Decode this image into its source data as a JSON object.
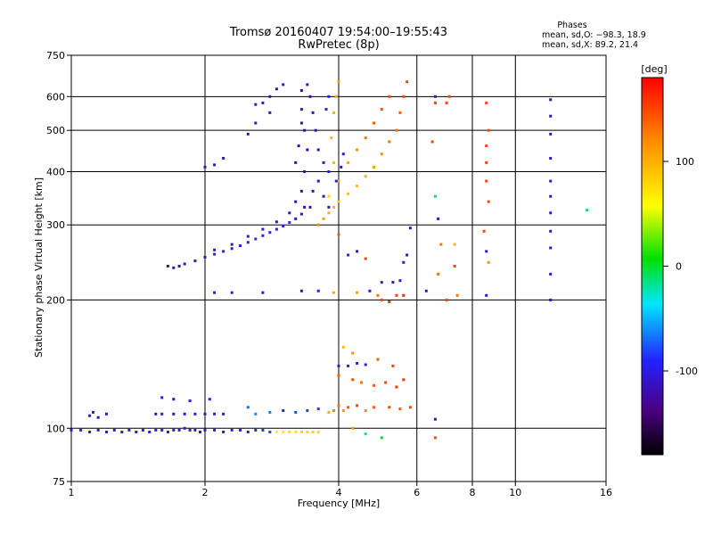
{
  "chart_data": {
    "type": "scatter",
    "title": "Tromsø 20160407 19:54:00–19:55:43",
    "subtitle": "RwPretec (8p)",
    "xlabel": "Frequency [MHz]",
    "ylabel": "Stationary phase Virtual Height [km]",
    "x_scale": "log",
    "y_scale": "log",
    "xlim": [
      1,
      16
    ],
    "ylim": [
      75,
      750
    ],
    "x_ticks": [
      1,
      2,
      4,
      6,
      8,
      10,
      16
    ],
    "x_tick_labels": [
      "1",
      "2",
      "4",
      "6",
      "8",
      "10",
      "16"
    ],
    "y_ticks": [
      75,
      100,
      200,
      300,
      400,
      500,
      600,
      750
    ],
    "y_tick_labels": [
      "75",
      "100",
      "200",
      "300",
      "400",
      "500",
      "600",
      "750"
    ],
    "grid": true,
    "stats": {
      "heading": "Phases",
      "line_o": "mean, sd,O: −98.3, 18.9",
      "line_x": "mean, sd,X:  89.2, 21.4"
    },
    "colorbar": {
      "label": "[deg]",
      "min": -180,
      "max": 180,
      "ticks": [
        100,
        0,
        -100
      ],
      "tick_labels": [
        "100",
        "0",
        "-100"
      ]
    },
    "color_note": "phase colormap: black/purple (-180) → blue → cyan → green → yellow → orange → red (+180)",
    "series": [
      {
        "points": [
          [
            1.0,
            99,
            -100
          ],
          [
            1.05,
            99,
            -102
          ],
          [
            1.1,
            98,
            -100
          ],
          [
            1.15,
            99,
            -98
          ],
          [
            1.2,
            98,
            -101
          ],
          [
            1.25,
            99,
            -103
          ],
          [
            1.3,
            98,
            -100
          ],
          [
            1.35,
            99,
            -99
          ],
          [
            1.4,
            98,
            -100
          ],
          [
            1.45,
            99,
            -102
          ],
          [
            1.5,
            98,
            -101
          ],
          [
            1.55,
            99,
            -100
          ],
          [
            1.6,
            99,
            -98
          ],
          [
            1.65,
            98,
            -100
          ],
          [
            1.7,
            99,
            -101
          ],
          [
            1.75,
            99,
            -100
          ],
          [
            1.8,
            100,
            -95
          ],
          [
            1.85,
            99,
            -100
          ],
          [
            1.9,
            99,
            -101
          ],
          [
            1.95,
            98,
            -100
          ],
          [
            2.0,
            99,
            -99
          ],
          [
            2.1,
            99,
            -100
          ],
          [
            2.2,
            98,
            -98
          ],
          [
            2.3,
            99,
            -100
          ],
          [
            2.4,
            99,
            -97
          ],
          [
            2.5,
            98,
            -95
          ],
          [
            2.6,
            99,
            -90
          ],
          [
            2.7,
            99,
            -85
          ],
          [
            2.8,
            98,
            -80
          ],
          [
            2.9,
            98,
            60
          ],
          [
            3.0,
            98,
            70
          ],
          [
            3.1,
            98,
            75
          ],
          [
            3.2,
            98,
            72
          ],
          [
            3.3,
            98,
            78
          ],
          [
            3.4,
            98,
            80
          ],
          [
            3.5,
            98,
            82
          ],
          [
            3.6,
            98,
            78
          ],
          [
            1.1,
            107,
            -110
          ],
          [
            1.12,
            109,
            -105
          ],
          [
            1.15,
            106,
            -112
          ],
          [
            1.2,
            108,
            -100
          ],
          [
            1.55,
            108,
            -110
          ],
          [
            1.6,
            108,
            -108
          ],
          [
            1.7,
            108,
            -110
          ],
          [
            1.8,
            108,
            -105
          ],
          [
            1.9,
            108,
            -108
          ],
          [
            2.0,
            108,
            -110
          ],
          [
            2.1,
            108,
            -106
          ],
          [
            2.2,
            108,
            -104
          ],
          [
            1.6,
            118,
            -105
          ],
          [
            1.7,
            117,
            -110
          ],
          [
            1.85,
            116,
            -100
          ],
          [
            2.05,
            117,
            -95
          ],
          [
            2.5,
            112,
            -70
          ],
          [
            2.6,
            108,
            -60
          ],
          [
            2.8,
            109,
            -65
          ],
          [
            3.0,
            110,
            -90
          ],
          [
            3.2,
            109,
            -80
          ],
          [
            3.4,
            110,
            -80
          ],
          [
            3.6,
            111,
            -85
          ],
          [
            3.8,
            109,
            100
          ],
          [
            3.9,
            110,
            120
          ],
          [
            4.0,
            113,
            130
          ],
          [
            4.1,
            110,
            110
          ],
          [
            4.2,
            112,
            140
          ],
          [
            4.4,
            113,
            150
          ],
          [
            4.6,
            110,
            120
          ],
          [
            4.8,
            112,
            140
          ],
          [
            5.2,
            112,
            150
          ],
          [
            5.5,
            111,
            140
          ],
          [
            5.8,
            112,
            150
          ],
          [
            4.0,
            140,
            -110
          ],
          [
            4.2,
            140,
            -100
          ],
          [
            4.4,
            142,
            -90
          ],
          [
            4.6,
            141,
            -100
          ],
          [
            4.0,
            133,
            140
          ],
          [
            4.3,
            130,
            150
          ],
          [
            4.5,
            128,
            130
          ],
          [
            4.8,
            126,
            140
          ],
          [
            5.1,
            128,
            150
          ],
          [
            5.4,
            125,
            160
          ],
          [
            5.6,
            130,
            155
          ],
          [
            4.1,
            155,
            100
          ],
          [
            4.3,
            150,
            120
          ],
          [
            4.9,
            145,
            140
          ],
          [
            5.3,
            140,
            150
          ],
          [
            4.3,
            100,
            110
          ],
          [
            4.6,
            97,
            -20
          ],
          [
            5.0,
            95,
            0
          ],
          [
            6.6,
            95,
            150
          ],
          [
            6.6,
            105,
            -110
          ],
          [
            2.1,
            208,
            -110
          ],
          [
            2.3,
            208,
            -100
          ],
          [
            2.7,
            208,
            -110
          ],
          [
            3.3,
            210,
            -115
          ],
          [
            3.6,
            210,
            -100
          ],
          [
            3.9,
            208,
            100
          ],
          [
            4.4,
            208,
            110
          ],
          [
            4.7,
            210,
            -100
          ],
          [
            4.9,
            205,
            130
          ],
          [
            5.0,
            200,
            150
          ],
          [
            5.2,
            198,
            160
          ],
          [
            5.4,
            205,
            155
          ],
          [
            5.6,
            205,
            160
          ],
          [
            5.0,
            220,
            -100
          ],
          [
            5.3,
            220,
            -110
          ],
          [
            5.5,
            222,
            -100
          ],
          [
            6.3,
            210,
            -100
          ],
          [
            7.0,
            200,
            150
          ],
          [
            7.4,
            205,
            130
          ],
          [
            8.6,
            205,
            -110
          ],
          [
            4.2,
            255,
            -90
          ],
          [
            4.6,
            250,
            150
          ],
          [
            5.6,
            245,
            -100
          ],
          [
            6.7,
            230,
            130
          ],
          [
            7.3,
            240,
            150
          ],
          [
            8.7,
            245,
            120
          ],
          [
            12,
            230,
            -110
          ],
          [
            12,
            200,
            -110
          ],
          [
            1.65,
            240,
            -110
          ],
          [
            1.7,
            238,
            -112
          ],
          [
            1.75,
            240,
            -110
          ],
          [
            1.8,
            243,
            -110
          ],
          [
            1.9,
            247,
            -108
          ],
          [
            2.0,
            252,
            -105
          ],
          [
            2.1,
            256,
            -104
          ],
          [
            2.2,
            260,
            -102
          ],
          [
            2.3,
            264,
            -100
          ],
          [
            2.4,
            268,
            -98
          ],
          [
            2.5,
            273,
            -96
          ],
          [
            2.6,
            278,
            -95
          ],
          [
            2.7,
            283,
            -94
          ],
          [
            2.8,
            288,
            -92
          ],
          [
            2.9,
            293,
            -90
          ],
          [
            3.0,
            298,
            -90
          ],
          [
            3.1,
            304,
            -88
          ],
          [
            3.2,
            310,
            -110
          ],
          [
            3.3,
            318,
            -112
          ],
          [
            3.35,
            330,
            -115
          ],
          [
            2.1,
            262,
            -110
          ],
          [
            2.3,
            270,
            -108
          ],
          [
            2.5,
            282,
            -110
          ],
          [
            2.7,
            293,
            -110
          ],
          [
            2.9,
            305,
            -112
          ],
          [
            3.1,
            320,
            -115
          ],
          [
            3.2,
            340,
            -118
          ],
          [
            3.3,
            360,
            -118
          ],
          [
            3.35,
            400,
            -120
          ],
          [
            3.4,
            450,
            -122
          ],
          [
            3.35,
            500,
            -120
          ],
          [
            3.3,
            560,
            -118
          ],
          [
            3.3,
            620,
            -120
          ],
          [
            3.4,
            640,
            -115
          ],
          [
            3.45,
            600,
            -118
          ],
          [
            3.5,
            550,
            -120
          ],
          [
            3.55,
            500,
            -118
          ],
          [
            3.6,
            450,
            -115
          ],
          [
            3.7,
            420,
            -110
          ],
          [
            3.8,
            400,
            -100
          ],
          [
            3.2,
            420,
            -120
          ],
          [
            3.25,
            460,
            -118
          ],
          [
            3.3,
            520,
            -122
          ],
          [
            3.45,
            330,
            -120
          ],
          [
            3.5,
            360,
            -118
          ],
          [
            3.6,
            380,
            -116
          ],
          [
            3.7,
            350,
            -112
          ],
          [
            3.8,
            330,
            -110
          ],
          [
            2.6,
            575,
            -112
          ],
          [
            2.7,
            580,
            -110
          ],
          [
            2.8,
            600,
            -110
          ],
          [
            2.9,
            625,
            -112
          ],
          [
            3.0,
            640,
            -110
          ],
          [
            2.5,
            490,
            -110
          ],
          [
            2.6,
            520,
            -110
          ],
          [
            2.8,
            550,
            -108
          ],
          [
            2.0,
            410,
            -112
          ],
          [
            2.1,
            415,
            -110
          ],
          [
            2.2,
            430,
            -108
          ],
          [
            3.6,
            300,
            120
          ],
          [
            3.7,
            310,
            110
          ],
          [
            3.8,
            320,
            100
          ],
          [
            3.9,
            330,
            95
          ],
          [
            4.0,
            340,
            90
          ],
          [
            4.2,
            355,
            90
          ],
          [
            4.4,
            370,
            95
          ],
          [
            4.6,
            390,
            100
          ],
          [
            4.8,
            410,
            110
          ],
          [
            5.0,
            440,
            120
          ],
          [
            5.2,
            470,
            130
          ],
          [
            5.4,
            500,
            130
          ],
          [
            5.5,
            550,
            140
          ],
          [
            5.6,
            600,
            150
          ],
          [
            5.7,
            650,
            150
          ],
          [
            3.8,
            350,
            80
          ],
          [
            4.0,
            380,
            100
          ],
          [
            4.2,
            420,
            110
          ],
          [
            4.4,
            450,
            120
          ],
          [
            4.6,
            480,
            130
          ],
          [
            4.8,
            520,
            140
          ],
          [
            5.0,
            560,
            145
          ],
          [
            5.2,
            600,
            150
          ],
          [
            3.85,
            480,
            95
          ],
          [
            3.9,
            550,
            100
          ],
          [
            3.95,
            600,
            105
          ],
          [
            4.0,
            650,
            110
          ],
          [
            3.9,
            420,
            95
          ],
          [
            3.95,
            380,
            -100
          ],
          [
            4.05,
            410,
            -110
          ],
          [
            4.1,
            440,
            -100
          ],
          [
            3.75,
            560,
            -110
          ],
          [
            3.8,
            600,
            -105
          ],
          [
            6.6,
            600,
            -110
          ],
          [
            6.6,
            580,
            150
          ],
          [
            6.5,
            470,
            150
          ],
          [
            7.0,
            580,
            150
          ],
          [
            7.1,
            600,
            150
          ],
          [
            6.6,
            350,
            -10
          ],
          [
            6.7,
            310,
            -110
          ],
          [
            6.8,
            270,
            130
          ],
          [
            7.3,
            270,
            100
          ],
          [
            8.6,
            580,
            150
          ],
          [
            8.7,
            500,
            150
          ],
          [
            8.6,
            460,
            150
          ],
          [
            8.6,
            420,
            150
          ],
          [
            8.6,
            380,
            150
          ],
          [
            8.7,
            340,
            150
          ],
          [
            8.5,
            290,
            150
          ],
          [
            8.6,
            260,
            -100
          ],
          [
            12,
            590,
            -120
          ],
          [
            12,
            540,
            -110
          ],
          [
            12,
            490,
            -110
          ],
          [
            12,
            430,
            -110
          ],
          [
            12,
            380,
            -110
          ],
          [
            12,
            350,
            -110
          ],
          [
            12,
            320,
            -100
          ],
          [
            12,
            290,
            -110
          ],
          [
            12,
            265,
            -110
          ],
          [
            14.5,
            325,
            -10
          ],
          [
            4.0,
            285,
            140
          ],
          [
            4.4,
            260,
            -110
          ],
          [
            5.8,
            295,
            -115
          ],
          [
            5.7,
            255,
            -110
          ]
        ]
      }
    ]
  }
}
